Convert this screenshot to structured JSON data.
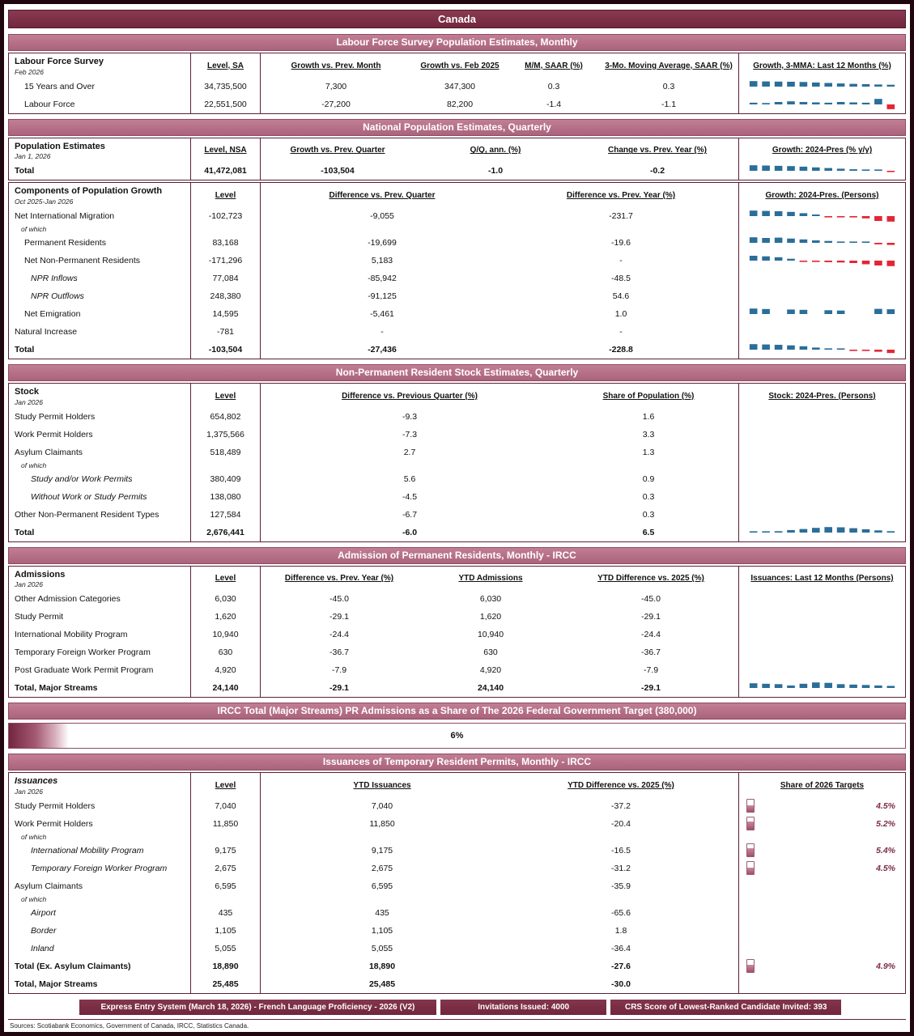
{
  "page": {
    "title": "Canada",
    "of_which": "of which",
    "sources": "Sources: Scotiabank Economics, Government of Canada, IRCC, Statistics Canada."
  },
  "colors": {
    "dark_band": "#72263e",
    "band": "#b8718a",
    "border": "#5a2038",
    "spark_pos": "#2a6e99",
    "spark_neg": "#e32636",
    "accent": "#7a2d45"
  },
  "lfs": {
    "band": "Labour Force Survey Population Estimates, Monthly",
    "title": "Labour Force Survey",
    "date": "Feb 2026",
    "col_level": "Level, SA",
    "col1": "Growth vs. Prev. Month",
    "col2": "Growth vs. Feb 2025",
    "col3": "M/M, SAAR (%)",
    "col4": "3-Mo. Moving Average, SAAR (%)",
    "col_spark": "Growth, 3-MMA: Last 12 Months (%)",
    "rows": [
      {
        "label": "15 Years and Over",
        "level": "34,735,500",
        "v1": "7,300",
        "v2": "347,300",
        "v3": "0.3",
        "v4": "0.3",
        "spark": [
          0.9,
          0.85,
          0.82,
          0.8,
          0.75,
          0.68,
          0.6,
          0.52,
          0.45,
          0.4,
          0.35,
          0.3
        ]
      },
      {
        "label": "Labour Force",
        "level": "22,551,500",
        "v1": "-27,200",
        "v2": "82,200",
        "v3": "-1.4",
        "v4": "-1.1",
        "spark": [
          0.25,
          0.2,
          0.35,
          0.45,
          0.35,
          0.3,
          0.25,
          0.35,
          0.3,
          0.25,
          0.8,
          -0.7
        ]
      }
    ]
  },
  "pop": {
    "band": "National Population Estimates, Quarterly",
    "title": "Population Estimates",
    "date": "Jan 1, 2026",
    "col_level": "Level, NSA",
    "col1": "Growth vs. Prev. Quarter",
    "col2": "Q/Q, ann. (%)",
    "col3": "Change vs. Prev. Year (%)",
    "col_spark": "Growth: 2024-Pres (% y/y)",
    "row": {
      "label": "Total",
      "level": "41,472,081",
      "v1": "-103,504",
      "v2": "-1.0",
      "v3": "-0.2",
      "spark": [
        1,
        0.95,
        0.9,
        0.85,
        0.75,
        0.62,
        0.5,
        0.38,
        0.28,
        0.18,
        0.08,
        -0.15
      ]
    }
  },
  "comp": {
    "title": "Components of Population Growth",
    "date": "Oct 2025-Jan 2026",
    "col_level": "Level",
    "col1": "Difference vs. Prev. Quarter",
    "col2": "Difference vs. Prev. Year (%)",
    "col_spark": "Growth: 2024-Pres. (Persons)",
    "rows": [
      {
        "label": "Net International Migration",
        "level": "-102,723",
        "v1": "-9,055",
        "v2": "-231.7",
        "spark": [
          0.85,
          0.8,
          0.75,
          0.65,
          0.45,
          0.25,
          -0.1,
          -0.15,
          -0.2,
          -0.35,
          -0.75,
          -0.85
        ]
      },
      {
        "label": "Permanent Residents",
        "level": "83,168",
        "v1": "-19,699",
        "v2": "-19.6",
        "spark": [
          0.9,
          0.8,
          0.85,
          0.7,
          0.55,
          0.4,
          0.3,
          0.2,
          0.15,
          0.1,
          -0.25,
          -0.35
        ]
      },
      {
        "label": "Net Non-Permanent Residents",
        "level": "-171,296",
        "v1": "5,183",
        "v2": "-",
        "spark": [
          0.8,
          0.7,
          0.55,
          0.3,
          -0.1,
          -0.15,
          -0.25,
          -0.3,
          -0.4,
          -0.6,
          -0.8,
          -0.9
        ]
      },
      {
        "label": "NPR Inflows",
        "level": "77,084",
        "v1": "-85,942",
        "v2": "-48.5",
        "spark": null
      },
      {
        "label": "NPR Outflows",
        "level": "248,380",
        "v1": "-91,125",
        "v2": "54.6",
        "spark": null
      },
      {
        "label": "Net Emigration",
        "level": "14,595",
        "v1": "-5,461",
        "v2": "1.0",
        "spark": [
          0.55,
          0.5,
          null,
          0.45,
          0.42,
          null,
          0.38,
          0.35,
          null,
          null,
          0.52,
          0.48
        ]
      },
      {
        "label": "Natural Increase",
        "level": "-781",
        "v1": "-",
        "v2": "-",
        "spark": null
      },
      {
        "label": "Total",
        "level": "-103,504",
        "v1": "-27,436",
        "v2": "-228.8",
        "spark": [
          0.9,
          0.85,
          0.8,
          0.7,
          0.55,
          0.35,
          0.2,
          0.1,
          -0.1,
          -0.2,
          -0.35,
          -0.55
        ]
      }
    ]
  },
  "stock": {
    "band": "Non-Permanent Resident Stock Estimates, Quarterly",
    "title": "Stock",
    "date": "Jan 2026",
    "col_level": "Level",
    "col1": "Difference vs. Previous Quarter (%)",
    "col2": "Share of Population (%)",
    "col_spark": "Stock: 2024-Pres. (Persons)",
    "rows": [
      {
        "label": "Study Permit Holders",
        "level": "654,802",
        "v1": "-9.3",
        "v2": "1.6"
      },
      {
        "label": "Work Permit Holders",
        "level": "1,375,566",
        "v1": "-7.3",
        "v2": "3.3"
      },
      {
        "label": "Asylum Claimants",
        "level": "518,489",
        "v1": "2.7",
        "v2": "1.3"
      },
      {
        "label": "Study and/or Work Permits",
        "level": "380,409",
        "v1": "5.6",
        "v2": "0.9"
      },
      {
        "label": "Without Work or Study Permits",
        "level": "138,080",
        "v1": "-4.5",
        "v2": "0.3"
      },
      {
        "label": "Other Non-Permanent Resident Types",
        "level": "127,584",
        "v1": "-6.7",
        "v2": "0.3"
      },
      {
        "label": "Total",
        "level": "2,676,441",
        "v1": "-6.0",
        "v2": "6.5",
        "spark": [
          0.05,
          0.1,
          0.25,
          0.45,
          0.65,
          0.85,
          1,
          0.95,
          0.8,
          0.6,
          0.4,
          0.25
        ]
      }
    ]
  },
  "adm": {
    "band": "Admission of Permanent Residents, Monthly - IRCC",
    "title": "Admissions",
    "date": "Jan 2026",
    "col_level": "Level",
    "col1": "Difference vs. Prev. Year (%)",
    "col2": "YTD Admissions",
    "col3": "YTD Difference vs. 2025 (%)",
    "col_spark": "Issuances: Last 12 Months (Persons)",
    "rows": [
      {
        "label": "Other Admission Categories",
        "level": "6,030",
        "v1": "-45.0",
        "v2": "6,030",
        "v3": "-45.0"
      },
      {
        "label": "Study Permit",
        "level": "1,620",
        "v1": "-29.1",
        "v2": "1,620",
        "v3": "-29.1"
      },
      {
        "label": "International Mobility Program",
        "level": "10,940",
        "v1": "-24.4",
        "v2": "10,940",
        "v3": "-24.4"
      },
      {
        "label": "Temporary Foreign Worker Program",
        "level": "630",
        "v1": "-36.7",
        "v2": "630",
        "v3": "-36.7"
      },
      {
        "label": "Post Graduate Work Permit Program",
        "level": "4,920",
        "v1": "-7.9",
        "v2": "4,920",
        "v3": "-7.9"
      },
      {
        "label": "Total, Major Streams",
        "level": "24,140",
        "v1": "-29.1",
        "v2": "24,140",
        "v3": "-29.1",
        "spark": [
          0.55,
          0.5,
          0.45,
          0.3,
          0.5,
          0.65,
          0.6,
          0.45,
          0.4,
          0.35,
          0.3,
          0.25
        ]
      }
    ]
  },
  "progress": {
    "band": "IRCC Total (Major Streams) PR Admissions as a Share of The 2026 Federal Government Target (380,000)",
    "label": "6%",
    "pct": 6
  },
  "iss": {
    "band": "Issuances of Temporary Resident Permits, Monthly - IRCC",
    "title": "Issuances",
    "date": "Jan 2026",
    "col_level": "Level",
    "col1": "YTD Issuances",
    "col2": "YTD Difference vs. 2025 (%)",
    "col_share": "Share of 2026 Targets",
    "rows": [
      {
        "label": "Study Permit Holders",
        "level": "7,040",
        "v1": "7,040",
        "v2": "-37.2",
        "share": "4.5%",
        "share_val": 4.5
      },
      {
        "label": "Work Permit Holders",
        "level": "11,850",
        "v1": "11,850",
        "v2": "-20.4",
        "share": "5.2%",
        "share_val": 5.2
      },
      {
        "label": "International Mobility Program",
        "level": "9,175",
        "v1": "9,175",
        "v2": "-16.5",
        "share": "5.4%",
        "share_val": 5.4
      },
      {
        "label": "Temporary Foreign Worker Program",
        "level": "2,675",
        "v1": "2,675",
        "v2": "-31.2",
        "share": "4.5%",
        "share_val": 4.5
      },
      {
        "label": "Asylum Claimants",
        "level": "6,595",
        "v1": "6,595",
        "v2": "-35.9"
      },
      {
        "label": "Airport",
        "level": "435",
        "v1": "435",
        "v2": "-65.6"
      },
      {
        "label": "Border",
        "level": "1,105",
        "v1": "1,105",
        "v2": "1.8"
      },
      {
        "label": "Inland",
        "level": "5,055",
        "v1": "5,055",
        "v2": "-36.4"
      },
      {
        "label": "Total (Ex. Asylum Claimants)",
        "level": "18,890",
        "v1": "18,890",
        "v2": "-27.6",
        "share": "4.9%",
        "share_val": 4.9
      },
      {
        "label": "Total, Major Streams",
        "level": "25,485",
        "v1": "25,485",
        "v2": "-30.0"
      }
    ]
  },
  "express": {
    "seg1": "Express Entry System (March 18, 2026) - French Language Proficiency - 2026 (V2)",
    "seg2": "Invitations Issued: 4000",
    "seg3": "CRS Score of Lowest-Ranked Candidate Invited: 393"
  }
}
